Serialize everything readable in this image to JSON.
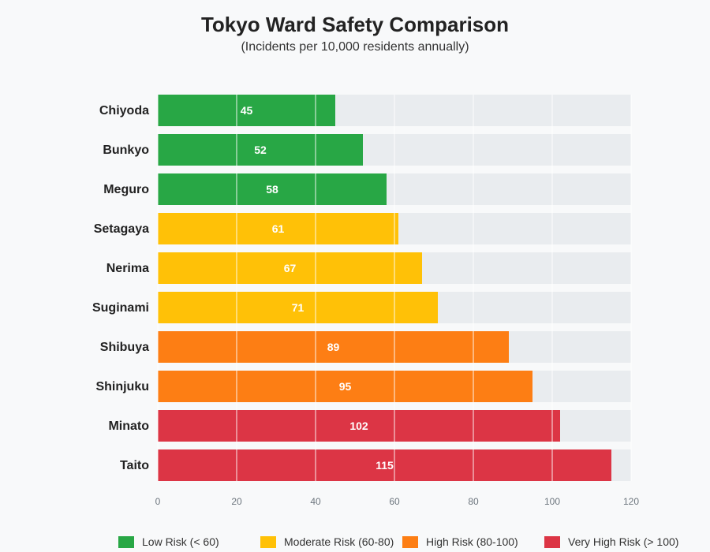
{
  "chart_data": {
    "type": "bar",
    "orientation": "horizontal",
    "title": "Tokyo Ward Safety Comparison",
    "subtitle": "(Incidents per 10,000 residents annually)",
    "categories": [
      "Chiyoda",
      "Bunkyo",
      "Meguro",
      "Setagaya",
      "Nerima",
      "Suginami",
      "Shibuya",
      "Shinjuku",
      "Minato",
      "Taito"
    ],
    "values": [
      45,
      52,
      58,
      61,
      67,
      71,
      89,
      95,
      102,
      115
    ],
    "xlim": [
      0,
      120
    ],
    "xticks": [
      "0",
      "20",
      "40",
      "60",
      "80",
      "100",
      "120"
    ],
    "grid": true,
    "legend_position": "bottom",
    "legend": [
      {
        "label": "Low Risk (< 60)",
        "color": "#28a745"
      },
      {
        "label": "Moderate Risk (60-80)",
        "color": "#ffc107"
      },
      {
        "label": "High Risk (80-100)",
        "color": "#fd7e14"
      },
      {
        "label": "Very High Risk (> 100)",
        "color": "#dc3545"
      }
    ],
    "track_color": "#e9ecef"
  }
}
